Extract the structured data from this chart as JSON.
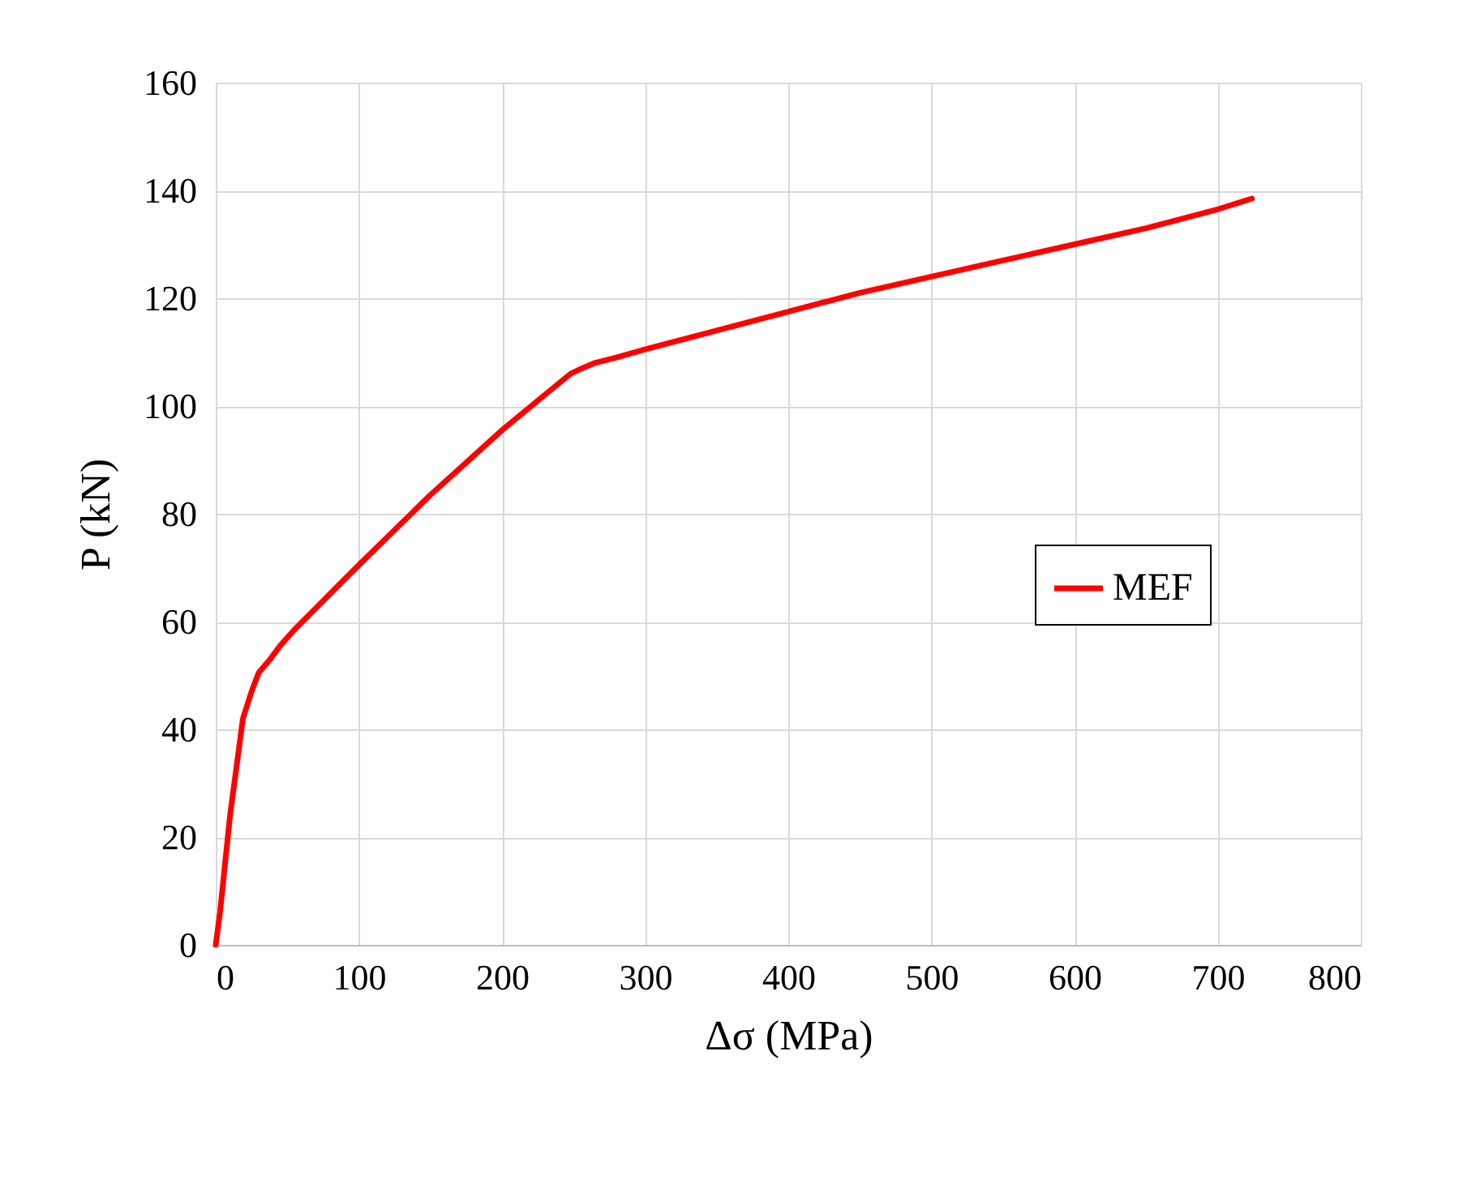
{
  "chart_data": {
    "type": "line",
    "xlabel": "Δσ (MPa)",
    "ylabel": "P (kN)",
    "x": [
      0,
      3,
      10,
      19,
      25,
      30,
      38,
      45,
      55,
      70,
      85,
      100,
      125,
      150,
      175,
      200,
      225,
      248,
      256,
      265,
      280,
      300,
      350,
      400,
      450,
      500,
      550,
      600,
      650,
      700,
      724
    ],
    "series": [
      {
        "name": "MEF",
        "color": "#ff0000",
        "values": [
          0,
          6,
          24,
          42,
          47,
          50.5,
          53,
          55.5,
          58.5,
          62.5,
          66.5,
          70.5,
          77,
          83.5,
          89.5,
          95.5,
          101,
          106,
          107,
          108,
          109,
          110.5,
          114,
          117.5,
          121,
          124,
          127,
          130,
          133,
          136.5,
          138.5
        ]
      }
    ],
    "xlim": [
      0,
      800
    ],
    "xticks": [
      0,
      100,
      200,
      300,
      400,
      500,
      600,
      700,
      800
    ],
    "ylim": [
      0,
      160
    ],
    "yticks": [
      0,
      20,
      40,
      60,
      80,
      100,
      120,
      140,
      160
    ],
    "grid": true,
    "legend": "right",
    "line_style": "solid",
    "marker": "none"
  }
}
